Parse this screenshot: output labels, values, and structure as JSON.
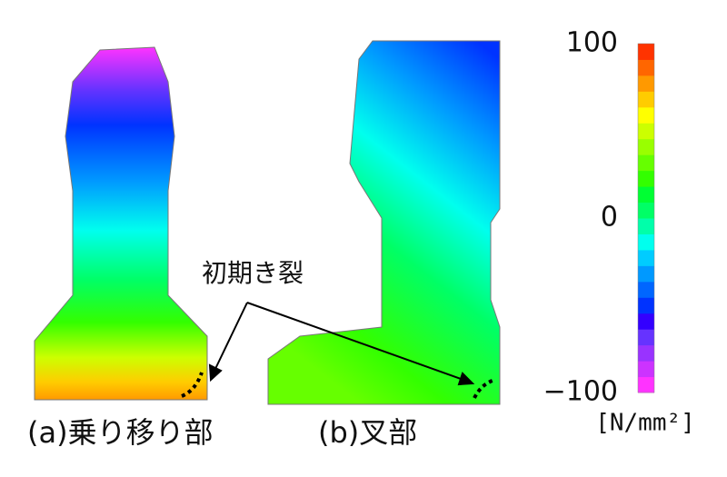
{
  "figure": {
    "panels": [
      {
        "label": "(a)乗り移り部"
      },
      {
        "label": "(b)叉部"
      }
    ],
    "annotation": "初期き裂",
    "colorbar": {
      "lim": [
        -100,
        100
      ],
      "ticks": [
        100,
        0,
        {
          "value": -100,
          "label": "−100"
        }
      ],
      "unit": "[N/mm²]",
      "colors": [
        "#ff33ff",
        "#cc33ff",
        "#9933ff",
        "#6633ff",
        "#3300ff",
        "#0033ff",
        "#0066ff",
        "#0099ff",
        "#00ccff",
        "#00ffee",
        "#00ffaa",
        "#00ff66",
        "#00ff33",
        "#33ff00",
        "#66ff00",
        "#99ff00",
        "#ccff00",
        "#ffff00",
        "#ffcc00",
        "#ff9900",
        "#ff6600",
        "#ff3300"
      ]
    }
  }
}
